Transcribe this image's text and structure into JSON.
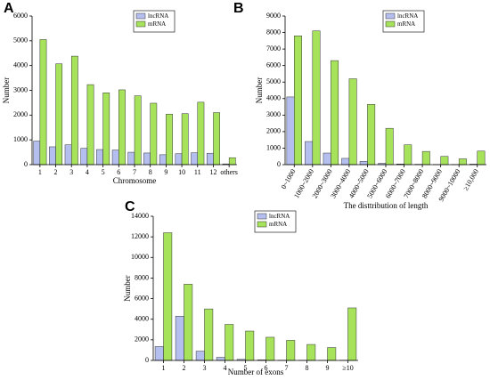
{
  "chart_data": [
    {
      "type": "bar",
      "label": "A",
      "xlabel": "Chromosome",
      "ylabel": "Number",
      "categories": [
        "1",
        "2",
        "3",
        "4",
        "5",
        "6",
        "7",
        "8",
        "9",
        "10",
        "11",
        "12",
        "others"
      ],
      "series": [
        {
          "name": "lncRNA",
          "color": "#b4bff0",
          "values": [
            950,
            720,
            800,
            660,
            610,
            590,
            500,
            470,
            400,
            440,
            480,
            460,
            30
          ]
        },
        {
          "name": "mRNA",
          "color": "#a6e35a",
          "values": [
            5050,
            4070,
            4380,
            3230,
            2900,
            3020,
            2780,
            2480,
            2040,
            2060,
            2520,
            2100,
            280
          ]
        }
      ],
      "ylim": [
        0,
        6000
      ],
      "yticks": [
        0,
        1000,
        2000,
        3000,
        4000,
        5000,
        6000
      ],
      "legend": "upper right"
    },
    {
      "type": "bar",
      "label": "B",
      "xlabel": "The disttribution of length",
      "ylabel": "Number",
      "categories": [
        "0~1000",
        "1000~2000",
        "2000~3000",
        "3000~4000",
        "4000~5000",
        "5000~6000",
        "6000~7000",
        "7000~8000",
        "8000~9000",
        "9000~10000",
        "≥10,000"
      ],
      "series": [
        {
          "name": "lncRNA",
          "color": "#b4bff0",
          "values": [
            4100,
            1400,
            700,
            380,
            200,
            80,
            40,
            20,
            10,
            10,
            30
          ]
        },
        {
          "name": "mRNA",
          "color": "#a6e35a",
          "values": [
            7800,
            8100,
            6300,
            5200,
            3650,
            2200,
            1200,
            800,
            500,
            350,
            820
          ]
        }
      ],
      "ylim": [
        0,
        9000
      ],
      "yticks": [
        0,
        1000,
        2000,
        3000,
        4000,
        5000,
        6000,
        7000,
        8000,
        9000
      ],
      "legend": "upper right"
    },
    {
      "type": "bar",
      "label": "C",
      "xlabel": "Number of exons",
      "ylabel": "Number",
      "categories": [
        "1",
        "2",
        "3",
        "4",
        "5",
        "6",
        "7",
        "8",
        "9",
        "≥10"
      ],
      "series": [
        {
          "name": "lncRNA",
          "color": "#b4bff0",
          "values": [
            1350,
            4300,
            900,
            300,
            100,
            50,
            20,
            10,
            5,
            20
          ]
        },
        {
          "name": "mRNA",
          "color": "#a6e35a",
          "values": [
            12400,
            7400,
            5000,
            3500,
            2850,
            2250,
            1950,
            1550,
            1250,
            5100
          ]
        }
      ],
      "ylim": [
        0,
        14000
      ],
      "yticks": [
        0,
        2000,
        4000,
        6000,
        8000,
        10000,
        12000,
        14000
      ],
      "legend": "upper right"
    }
  ]
}
